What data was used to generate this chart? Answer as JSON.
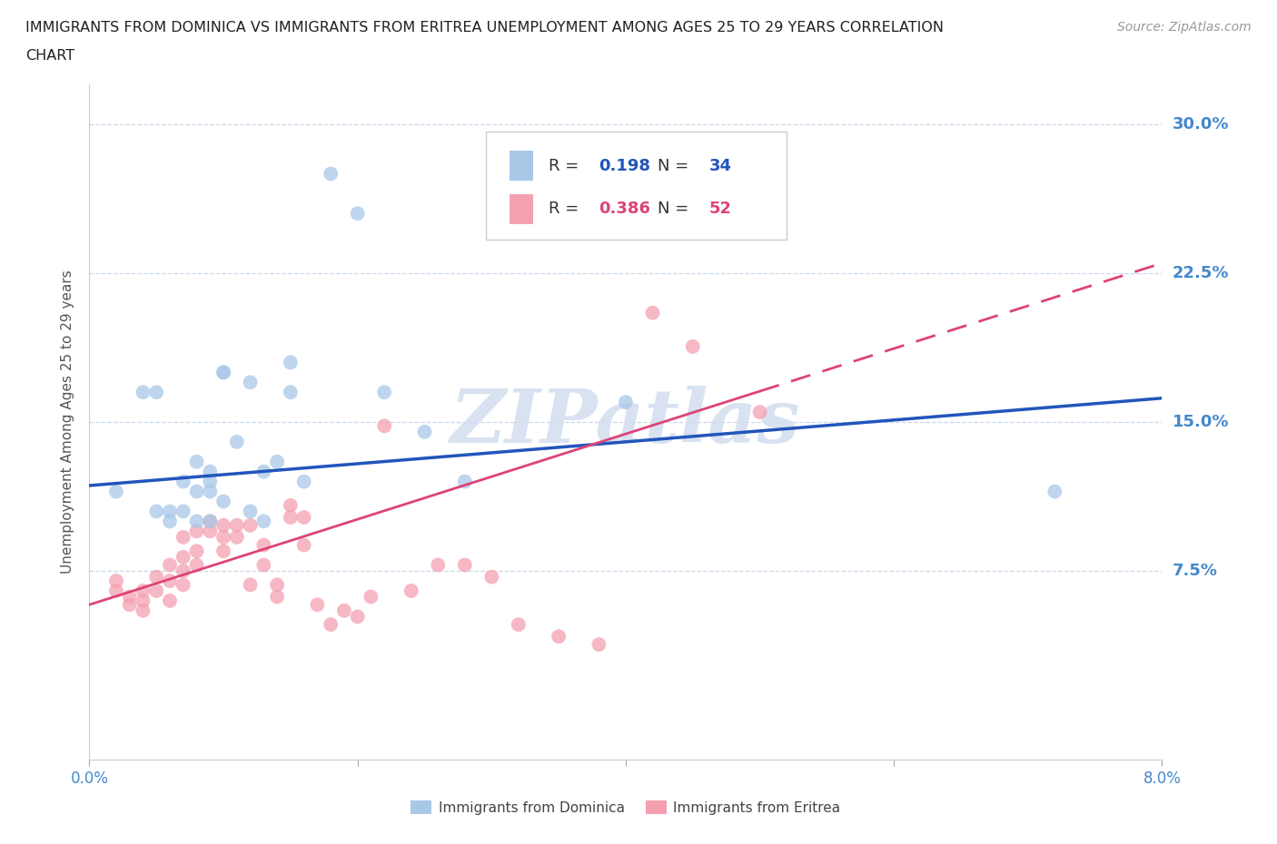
{
  "title_line1": "IMMIGRANTS FROM DOMINICA VS IMMIGRANTS FROM ERITREA UNEMPLOYMENT AMONG AGES 25 TO 29 YEARS CORRELATION",
  "title_line2": "CHART",
  "source": "Source: ZipAtlas.com",
  "ylabel": "Unemployment Among Ages 25 to 29 years",
  "r_dominica": 0.198,
  "n_dominica": 34,
  "r_eritrea": 0.386,
  "n_eritrea": 52,
  "xlim": [
    0.0,
    0.08
  ],
  "ylim": [
    -0.02,
    0.32
  ],
  "yticks": [
    0.075,
    0.15,
    0.225,
    0.3
  ],
  "ytick_labels": [
    "7.5%",
    "15.0%",
    "22.5%",
    "30.0%"
  ],
  "xtick_labels": [
    "0.0%",
    "",
    "",
    "",
    "8.0%"
  ],
  "color_dominica": "#a8c8e8",
  "color_eritrea": "#f4a0b0",
  "color_line_dominica": "#2255bb",
  "color_line_eritrea": "#dd4477",
  "color_axis_text": "#4488cc",
  "color_title": "#202020",
  "color_source": "#999999",
  "color_grid": "#c8d8e8",
  "watermark_color": "#d4dff0",
  "dominica_x": [
    0.002,
    0.004,
    0.005,
    0.005,
    0.006,
    0.006,
    0.007,
    0.007,
    0.008,
    0.008,
    0.008,
    0.009,
    0.009,
    0.009,
    0.009,
    0.01,
    0.01,
    0.01,
    0.011,
    0.012,
    0.012,
    0.013,
    0.013,
    0.014,
    0.015,
    0.015,
    0.016,
    0.018,
    0.02,
    0.022,
    0.025,
    0.028,
    0.04,
    0.072
  ],
  "dominica_y": [
    0.115,
    0.165,
    0.165,
    0.105,
    0.105,
    0.1,
    0.12,
    0.105,
    0.115,
    0.13,
    0.1,
    0.125,
    0.12,
    0.1,
    0.115,
    0.175,
    0.175,
    0.11,
    0.14,
    0.17,
    0.105,
    0.125,
    0.1,
    0.13,
    0.18,
    0.165,
    0.12,
    0.275,
    0.255,
    0.165,
    0.145,
    0.12,
    0.16,
    0.115
  ],
  "eritrea_x": [
    0.002,
    0.002,
    0.003,
    0.003,
    0.004,
    0.004,
    0.004,
    0.005,
    0.005,
    0.006,
    0.006,
    0.006,
    0.007,
    0.007,
    0.007,
    0.007,
    0.008,
    0.008,
    0.008,
    0.009,
    0.009,
    0.01,
    0.01,
    0.01,
    0.011,
    0.011,
    0.012,
    0.012,
    0.013,
    0.013,
    0.014,
    0.014,
    0.015,
    0.015,
    0.016,
    0.016,
    0.017,
    0.018,
    0.019,
    0.02,
    0.021,
    0.022,
    0.024,
    0.026,
    0.028,
    0.03,
    0.032,
    0.035,
    0.038,
    0.042,
    0.045,
    0.05
  ],
  "eritrea_y": [
    0.07,
    0.065,
    0.062,
    0.058,
    0.065,
    0.06,
    0.055,
    0.072,
    0.065,
    0.078,
    0.07,
    0.06,
    0.082,
    0.075,
    0.068,
    0.092,
    0.078,
    0.085,
    0.095,
    0.095,
    0.1,
    0.092,
    0.085,
    0.098,
    0.098,
    0.092,
    0.098,
    0.068,
    0.078,
    0.088,
    0.068,
    0.062,
    0.108,
    0.102,
    0.102,
    0.088,
    0.058,
    0.048,
    0.055,
    0.052,
    0.062,
    0.148,
    0.065,
    0.078,
    0.078,
    0.072,
    0.048,
    0.042,
    0.038,
    0.205,
    0.188,
    0.155
  ],
  "line_dom_x0": 0.0,
  "line_dom_y0": 0.118,
  "line_dom_x1": 0.08,
  "line_dom_y1": 0.162,
  "line_eri_x0": 0.0,
  "line_eri_y0": 0.058,
  "line_eri_x1": 0.08,
  "line_eri_y1": 0.23,
  "line_eri_solid_end": 0.05
}
